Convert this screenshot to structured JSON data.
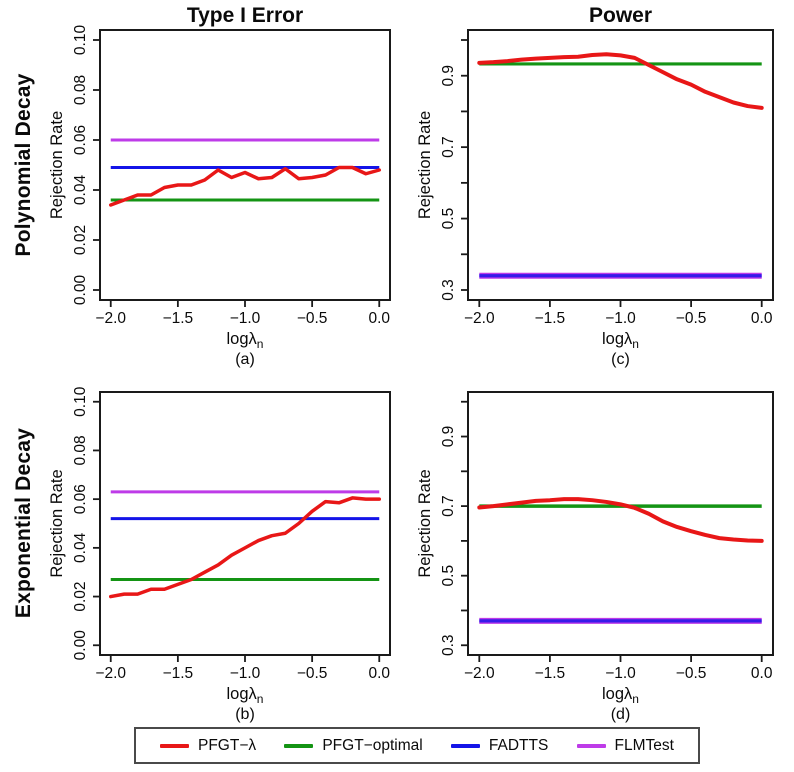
{
  "figure": {
    "background": "#ffffff",
    "row_labels": [
      "Polynomial Decay",
      "Exponential Decay"
    ],
    "column_titles": [
      "Type I Error",
      "Power"
    ],
    "colors": {
      "pfgt_lambda": "#E81717",
      "pfgt_optimal": "#149414",
      "fadtts": "#1414E8",
      "flmtest": "#BE3BE8"
    },
    "legend": {
      "items": [
        {
          "label": "PFGT−λ",
          "color": "#E81717"
        },
        {
          "label": "PFGT−optimal",
          "color": "#149414"
        },
        {
          "label": "FADTTS",
          "color": "#1414E8"
        },
        {
          "label": "FLMTest",
          "color": "#BE3BE8"
        }
      ]
    }
  },
  "chart_data": [
    {
      "id": "a",
      "type": "line",
      "title": "Type I Error",
      "caption": "(a)",
      "xlabel": {
        "text": "logλ",
        "sub": "n"
      },
      "ylabel": "Rejection Rate",
      "xlim": [
        -2.08,
        0.08
      ],
      "ylim": [
        -0.004,
        0.104
      ],
      "xticks": [
        -2.0,
        -1.5,
        -1.0,
        -0.5,
        0.0
      ],
      "xtick_labels": [
        "−2.0",
        "−1.5",
        "−1.0",
        "−0.5",
        "0.0"
      ],
      "yticks": [
        0.0,
        0.02,
        0.04,
        0.06,
        0.08,
        0.1
      ],
      "ytick_labels": [
        "0.00",
        "0.02",
        "0.04",
        "0.06",
        "0.08",
        "0.10"
      ],
      "grid": false,
      "x": [
        -2.0,
        -1.9,
        -1.8,
        -1.7,
        -1.6,
        -1.5,
        -1.4,
        -1.3,
        -1.2,
        -1.1,
        -1.0,
        -0.9,
        -0.8,
        -0.7,
        -0.6,
        -0.5,
        -0.4,
        -0.3,
        -0.2,
        -0.1,
        0.0
      ],
      "series": [
        {
          "name": "FLMTest",
          "color": "#BE3BE8",
          "value": 0.06,
          "lw": 3
        },
        {
          "name": "FADTTS",
          "color": "#1414E8",
          "value": 0.049,
          "lw": 3
        },
        {
          "name": "PFGT-optimal",
          "color": "#149414",
          "value": 0.036,
          "lw": 3
        },
        {
          "name": "PFGT-λ",
          "color": "#E81717",
          "lw": 3.5,
          "values": [
            0.034,
            0.036,
            0.038,
            0.038,
            0.041,
            0.042,
            0.042,
            0.044,
            0.048,
            0.045,
            0.047,
            0.0445,
            0.045,
            0.0485,
            0.0445,
            0.045,
            0.046,
            0.049,
            0.049,
            0.0465,
            0.048
          ]
        }
      ]
    },
    {
      "id": "c",
      "type": "line",
      "title": "Power",
      "caption": "(c)",
      "xlabel": {
        "text": "logλ",
        "sub": "n"
      },
      "ylabel": "Rejection Rate",
      "xlim": [
        -2.08,
        0.08
      ],
      "ylim": [
        0.272,
        1.028
      ],
      "xticks": [
        -2.0,
        -1.5,
        -1.0,
        -0.5,
        0.0
      ],
      "xtick_labels": [
        "−2.0",
        "−1.5",
        "−1.0",
        "−0.5",
        "0.0"
      ],
      "yticks": [
        0.3,
        0.4,
        0.5,
        0.6,
        0.7,
        0.8,
        0.9,
        1.0
      ],
      "ytick_labels": [
        "0.3",
        "",
        "0.5",
        "",
        "0.7",
        "",
        "0.9",
        ""
      ],
      "grid": false,
      "x": [
        -2.0,
        -1.9,
        -1.8,
        -1.7,
        -1.6,
        -1.5,
        -1.4,
        -1.3,
        -1.2,
        -1.1,
        -1.0,
        -0.9,
        -0.8,
        -0.7,
        -0.6,
        -0.5,
        -0.4,
        -0.3,
        -0.2,
        -0.1,
        0.0
      ],
      "series": [
        {
          "name": "FLMTest",
          "color": "#BE3BE8",
          "value": 0.34,
          "lw": 6
        },
        {
          "name": "FADTTS",
          "color": "#1414E8",
          "value": 0.34,
          "lw": 3.2,
          "opacity": 0.8
        },
        {
          "name": "PFGT-optimal",
          "color": "#149414",
          "value": 0.933,
          "lw": 3.2
        },
        {
          "name": "PFGT-λ",
          "color": "#E81717",
          "lw": 4,
          "values": [
            0.936,
            0.938,
            0.941,
            0.945,
            0.948,
            0.95,
            0.952,
            0.953,
            0.958,
            0.96,
            0.957,
            0.95,
            0.93,
            0.91,
            0.89,
            0.875,
            0.855,
            0.84,
            0.825,
            0.815,
            0.81
          ]
        }
      ]
    },
    {
      "id": "b",
      "type": "line",
      "caption": "(b)",
      "xlabel": {
        "text": "logλ",
        "sub": "n"
      },
      "ylabel": "Rejection Rate",
      "xlim": [
        -2.08,
        0.08
      ],
      "ylim": [
        -0.004,
        0.104
      ],
      "xticks": [
        -2.0,
        -1.5,
        -1.0,
        -0.5,
        0.0
      ],
      "xtick_labels": [
        "−2.0",
        "−1.5",
        "−1.0",
        "−0.5",
        "0.0"
      ],
      "yticks": [
        0.0,
        0.02,
        0.04,
        0.06,
        0.08,
        0.1
      ],
      "ytick_labels": [
        "0.00",
        "0.02",
        "0.04",
        "0.06",
        "0.08",
        "0.10"
      ],
      "grid": false,
      "x": [
        -2.0,
        -1.9,
        -1.8,
        -1.7,
        -1.6,
        -1.5,
        -1.4,
        -1.3,
        -1.2,
        -1.1,
        -1.0,
        -0.9,
        -0.8,
        -0.7,
        -0.6,
        -0.5,
        -0.4,
        -0.3,
        -0.2,
        -0.1,
        0.0
      ],
      "series": [
        {
          "name": "FLMTest",
          "color": "#BE3BE8",
          "value": 0.063,
          "lw": 3
        },
        {
          "name": "FADTTS",
          "color": "#1414E8",
          "value": 0.052,
          "lw": 3
        },
        {
          "name": "PFGT-optimal",
          "color": "#149414",
          "value": 0.027,
          "lw": 3
        },
        {
          "name": "PFGT-λ",
          "color": "#E81717",
          "lw": 3.5,
          "values": [
            0.02,
            0.021,
            0.021,
            0.023,
            0.023,
            0.025,
            0.027,
            0.03,
            0.033,
            0.037,
            0.04,
            0.043,
            0.045,
            0.046,
            0.05,
            0.055,
            0.059,
            0.0585,
            0.0605,
            0.06,
            0.06
          ]
        }
      ]
    },
    {
      "id": "d",
      "type": "line",
      "caption": "(d)",
      "xlabel": {
        "text": "logλ",
        "sub": "n"
      },
      "ylabel": "Rejection Rate",
      "xlim": [
        -2.08,
        0.08
      ],
      "ylim": [
        0.272,
        1.028
      ],
      "xticks": [
        -2.0,
        -1.5,
        -1.0,
        -0.5,
        0.0
      ],
      "xtick_labels": [
        "−2.0",
        "−1.5",
        "−1.0",
        "−0.5",
        "0.0"
      ],
      "yticks": [
        0.3,
        0.4,
        0.5,
        0.6,
        0.7,
        0.8,
        0.9,
        1.0
      ],
      "ytick_labels": [
        "0.3",
        "",
        "0.5",
        "",
        "0.7",
        "",
        "0.9",
        ""
      ],
      "grid": false,
      "x": [
        -2.0,
        -1.9,
        -1.8,
        -1.7,
        -1.6,
        -1.5,
        -1.4,
        -1.3,
        -1.2,
        -1.1,
        -1.0,
        -0.9,
        -0.8,
        -0.7,
        -0.6,
        -0.5,
        -0.4,
        -0.3,
        -0.2,
        -0.1,
        0.0
      ],
      "series": [
        {
          "name": "FLMTest",
          "color": "#BE3BE8",
          "value": 0.37,
          "lw": 6
        },
        {
          "name": "FADTTS",
          "color": "#1414E8",
          "value": 0.37,
          "lw": 3.2,
          "opacity": 0.8
        },
        {
          "name": "PFGT-optimal",
          "color": "#149414",
          "value": 0.7,
          "lw": 3.5
        },
        {
          "name": "PFGT-λ",
          "color": "#E81717",
          "lw": 4,
          "values": [
            0.696,
            0.7,
            0.705,
            0.71,
            0.715,
            0.717,
            0.72,
            0.72,
            0.717,
            0.712,
            0.705,
            0.695,
            0.678,
            0.656,
            0.64,
            0.628,
            0.617,
            0.608,
            0.604,
            0.601,
            0.6
          ]
        }
      ]
    }
  ]
}
